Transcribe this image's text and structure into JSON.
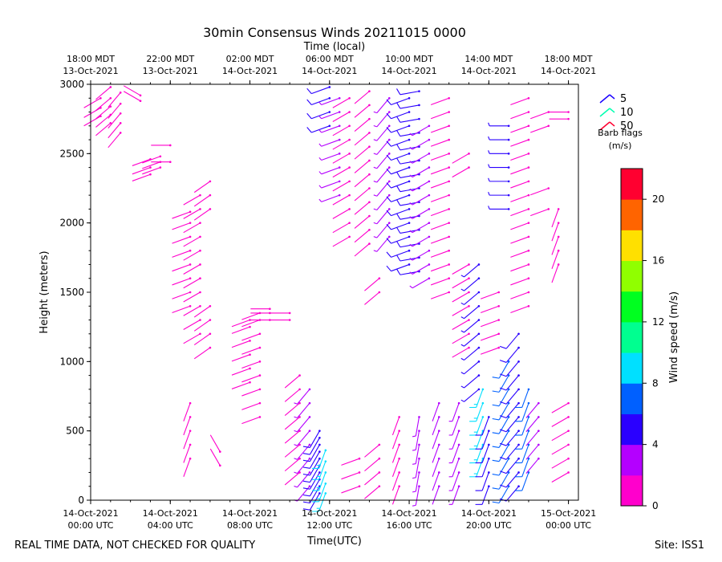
{
  "chart_data": {
    "type": "wind-barb-profile",
    "title": "30min Consensus Winds 20211015 0000",
    "top_axis_label": "Time (local)",
    "xlabel": "Time(UTC)",
    "ylabel": "Height (meters)",
    "x_range_hours": [
      0,
      24.5
    ],
    "ylim": [
      0,
      3000
    ],
    "y_ticks": [
      0,
      500,
      1000,
      1500,
      2000,
      2500,
      3000
    ],
    "x_ticks_utc": [
      {
        "hour": 0,
        "line1": "14-Oct-2021",
        "line2": "00:00 UTC"
      },
      {
        "hour": 4,
        "line1": "14-Oct-2021",
        "line2": "04:00 UTC"
      },
      {
        "hour": 8,
        "line1": "14-Oct-2021",
        "line2": "08:00 UTC"
      },
      {
        "hour": 12,
        "line1": "14-Oct-2021",
        "line2": "12:00 UTC"
      },
      {
        "hour": 16,
        "line1": "14-Oct-2021",
        "line2": "16:00 UTC"
      },
      {
        "hour": 20,
        "line1": "14-Oct-2021",
        "line2": "20:00 UTC"
      },
      {
        "hour": 24,
        "line1": "15-Oct-2021",
        "line2": "00:00 UTC"
      }
    ],
    "x_ticks_local": [
      {
        "hour": 0,
        "line1": "18:00 MDT",
        "line2": "13-Oct-2021"
      },
      {
        "hour": 4,
        "line1": "22:00 MDT",
        "line2": "13-Oct-2021"
      },
      {
        "hour": 8,
        "line1": "02:00 MDT",
        "line2": "14-Oct-2021"
      },
      {
        "hour": 12,
        "line1": "06:00 MDT",
        "line2": "14-Oct-2021"
      },
      {
        "hour": 16,
        "line1": "10:00 MDT",
        "line2": "14-Oct-2021"
      },
      {
        "hour": 20,
        "line1": "14:00 MDT",
        "line2": "14-Oct-2021"
      },
      {
        "hour": 24,
        "line1": "18:00 MDT",
        "line2": "14-Oct-2021"
      }
    ],
    "legend": {
      "title_line1": "Barb flags",
      "title_line2": "(m/s)",
      "entries": [
        {
          "label": "5",
          "color": "#1a00ff"
        },
        {
          "label": "10",
          "color": "#00ffb0"
        },
        {
          "label": "50",
          "color": "#ff0030"
        }
      ]
    },
    "colorbar": {
      "label": "Wind speed (m/s)",
      "min": 0,
      "max": 22,
      "ticks": [
        0,
        4,
        8,
        12,
        16,
        20
      ],
      "colors": [
        "#ff00cc",
        "#b400ff",
        "#2a00ff",
        "#0060ff",
        "#00e0ff",
        "#00ff90",
        "#00ff20",
        "#90ff00",
        "#ffe000",
        "#ff6400",
        "#ff0030"
      ]
    },
    "wind_columns": [
      {
        "t": 0.5,
        "z": [
          2770,
          2830,
          2900
        ],
        "speed": 1.5,
        "dir": 240
      },
      {
        "t": 1.0,
        "z": [
          2720,
          2780,
          2840,
          2900,
          2980
        ],
        "speed": 1.5,
        "dir": 230
      },
      {
        "t": 1.5,
        "z": [
          2650,
          2720,
          2790,
          2860,
          2940
        ],
        "speed": 1.5,
        "dir": 220
      },
      {
        "t": 2.5,
        "z": [
          2880,
          2920
        ],
        "speed": 1.0,
        "dir": 300
      },
      {
        "t": 3.0,
        "z": [
          2350,
          2400,
          2460
        ],
        "speed": 1.0,
        "dir": 250
      },
      {
        "t": 3.5,
        "z": [
          2400,
          2440,
          2480
        ],
        "speed": 1.0,
        "dir": 250
      },
      {
        "t": 4.0,
        "z": [
          2440,
          2560
        ],
        "speed": 1.0,
        "dir": 270
      },
      {
        "t": 5.0,
        "z": [
          1400,
          1500,
          1600,
          1700,
          1800,
          1900,
          2000,
          2080
        ],
        "speed": 1.5,
        "dir": 250
      },
      {
        "t": 5.5,
        "z": [
          1200,
          1300,
          1400,
          1500,
          1600,
          1700,
          1800,
          1900,
          2000,
          2100,
          2200
        ],
        "speed": 1.5,
        "dir": 240
      },
      {
        "t": 5.0,
        "z": [
          300,
          400,
          500,
          600,
          700
        ],
        "speed": 1.0,
        "dir": 200
      },
      {
        "t": 6.0,
        "z": [
          1100,
          1200,
          1300,
          1400,
          2100,
          2200,
          2300
        ],
        "speed": 1.5,
        "dir": 235
      },
      {
        "t": 6.5,
        "z": [
          250,
          350
        ],
        "speed": 1.0,
        "dir": 330
      },
      {
        "t": 8.0,
        "z": [
          850,
          950,
          1050,
          1150,
          1250,
          1300
        ],
        "speed": 1.5,
        "dir": 250
      },
      {
        "t": 8.5,
        "z": [
          600,
          700,
          800,
          900,
          1000,
          1100,
          1200,
          1300,
          1350
        ],
        "speed": 1.5,
        "dir": 250
      },
      {
        "t": 9.0,
        "z": [
          1300,
          1350,
          1380
        ],
        "speed": 1.0,
        "dir": 270
      },
      {
        "t": 10.0,
        "z": [
          1300,
          1350
        ],
        "speed": 1.0,
        "dir": 270
      },
      {
        "t": 10.5,
        "z": [
          200,
          300,
          400,
          500,
          600,
          700,
          800,
          900
        ],
        "speed": 1.5,
        "dir": 230
      },
      {
        "t": 11.0,
        "z": [
          100,
          200,
          300,
          400,
          500,
          600,
          700,
          800
        ],
        "speed": 2.5,
        "dir": 220
      },
      {
        "t": 11.5,
        "z": [
          50,
          100,
          150,
          200,
          250,
          300,
          350,
          400,
          450,
          500
        ],
        "speed": 5.5,
        "dir": 210
      },
      {
        "t": 11.8,
        "z": [
          50,
          120,
          200,
          280,
          360
        ],
        "speed": 9.0,
        "dir": 200
      },
      {
        "t": 12.0,
        "z": [
          2700,
          2800,
          2900,
          2980
        ],
        "speed": 5.0,
        "dir": 250
      },
      {
        "t": 12.5,
        "z": [
          2200,
          2300,
          2400,
          2500,
          2600,
          2700,
          2800,
          2900
        ],
        "speed": 3.0,
        "dir": 250
      },
      {
        "t": 13.0,
        "z": [
          1900,
          2000,
          2100,
          2200,
          2300,
          2400,
          2500,
          2600,
          2700,
          2800,
          2900
        ],
        "speed": 1.5,
        "dir": 240
      },
      {
        "t": 13.5,
        "z": [
          100,
          200,
          300
        ],
        "speed": 1.0,
        "dir": 250
      },
      {
        "t": 14.0,
        "z": [
          1850,
          1950,
          2050,
          2150,
          2250,
          2350,
          2450,
          2550,
          2650,
          2750,
          2850,
          2950
        ],
        "speed": 1.5,
        "dir": 230
      },
      {
        "t": 14.5,
        "z": [
          1500,
          1600,
          100,
          200,
          300,
          400
        ],
        "speed": 1.5,
        "dir": 230
      },
      {
        "t": 15.0,
        "z": [
          1900,
          2000,
          2100,
          2200,
          2300,
          2400,
          2500,
          2600,
          2700,
          2800,
          2900
        ],
        "speed": 2.5,
        "dir": 220
      },
      {
        "t": 15.5,
        "z": [
          100,
          200,
          300,
          400,
          500,
          600
        ],
        "speed": 1.5,
        "dir": 200
      },
      {
        "t": 16.0,
        "z": [
          1700,
          1800,
          1900,
          2000,
          2100,
          2200,
          2300,
          2400,
          2500,
          2600,
          2700,
          2800,
          2900
        ],
        "speed": 5.5,
        "dir": 250
      },
      {
        "t": 16.5,
        "z": [
          1650,
          1750,
          1850,
          1950,
          2050,
          2150,
          2250,
          2350,
          2450,
          2550,
          2650,
          2750,
          2850,
          2950
        ],
        "speed": 5.0,
        "dir": 260
      },
      {
        "t": 16.5,
        "z": [
          100,
          200,
          300,
          400,
          500,
          600
        ],
        "speed": 2.5,
        "dir": 190
      },
      {
        "t": 17.0,
        "z": [
          1600,
          1700,
          1800,
          1900,
          2000,
          2100,
          2200,
          2300,
          2400,
          2500,
          2600,
          2700
        ],
        "speed": 3.0,
        "dir": 240
      },
      {
        "t": 17.5,
        "z": [
          100,
          200,
          300,
          400,
          500,
          600,
          700
        ],
        "speed": 2.0,
        "dir": 200
      },
      {
        "t": 18.0,
        "z": [
          1500,
          1600,
          1700,
          1800,
          1900,
          2000,
          2100,
          2200,
          2300,
          2400,
          2500,
          2600,
          2700,
          2800,
          2900
        ],
        "speed": 1.5,
        "dir": 250
      },
      {
        "t": 18.5,
        "z": [
          100,
          200,
          300,
          400,
          500,
          600,
          700
        ],
        "speed": 3.0,
        "dir": 200
      },
      {
        "t": 19.0,
        "z": [
          1100,
          1200,
          1300,
          1400,
          1500,
          1600,
          1700,
          2400,
          2500
        ],
        "speed": 1.5,
        "dir": 240
      },
      {
        "t": 19.5,
        "z": [
          800,
          900,
          1000,
          1100,
          1200,
          1300,
          1400,
          1500,
          1600,
          1700
        ],
        "speed": 4.5,
        "dir": 230
      },
      {
        "t": 19.7,
        "z": [
          300,
          400,
          500,
          600,
          700,
          800
        ],
        "speed": 8.5,
        "dir": 200
      },
      {
        "t": 20.0,
        "z": [
          100,
          200,
          300,
          400,
          500,
          600
        ],
        "speed": 5.5,
        "dir": 200
      },
      {
        "t": 20.5,
        "z": [
          1100,
          1200,
          1300,
          1400,
          1500
        ],
        "speed": 1.5,
        "dir": 250
      },
      {
        "t": 21.0,
        "z": [
          100,
          200,
          300,
          400,
          500,
          600,
          700,
          800,
          900,
          1000
        ],
        "speed": 6.0,
        "dir": 210
      },
      {
        "t": 21.5,
        "z": [
          100,
          200,
          300,
          400,
          500,
          600,
          700,
          800,
          900,
          1000,
          1100,
          1200
        ],
        "speed": 5.0,
        "dir": 220
      },
      {
        "t": 21.0,
        "z": [
          2100,
          2200,
          2300,
          2400,
          2500,
          2600,
          2700
        ],
        "speed": 4.0,
        "dir": 270
      },
      {
        "t": 22.0,
        "z": [
          1400,
          1500,
          1600,
          1700,
          1800,
          1900,
          2000,
          2100,
          2200,
          2300,
          2400,
          2500,
          2600,
          2700,
          2800,
          2900
        ],
        "speed": 1.5,
        "dir": 250
      },
      {
        "t": 22.0,
        "z": [
          200,
          300,
          400,
          500,
          600,
          700,
          800
        ],
        "speed": 6.5,
        "dir": 200
      },
      {
        "t": 22.5,
        "z": [
          300,
          400,
          500,
          600,
          700
        ],
        "speed": 2.0,
        "dir": 220
      },
      {
        "t": 23.0,
        "z": [
          2100,
          2250,
          2700,
          2800
        ],
        "speed": 1.0,
        "dir": 250
      },
      {
        "t": 23.5,
        "z": [
          1700,
          1800,
          1900,
          2000,
          2100
        ],
        "speed": 1.0,
        "dir": 200
      },
      {
        "t": 24.0,
        "z": [
          200,
          300,
          400,
          500,
          600,
          700
        ],
        "speed": 1.5,
        "dir": 240
      },
      {
        "t": 24.0,
        "z": [
          2750,
          2800
        ],
        "speed": 1.0,
        "dir": 270
      }
    ]
  },
  "footer": {
    "left": "REAL TIME DATA, NOT CHECKED FOR QUALITY",
    "right": "Site: ISS1"
  }
}
